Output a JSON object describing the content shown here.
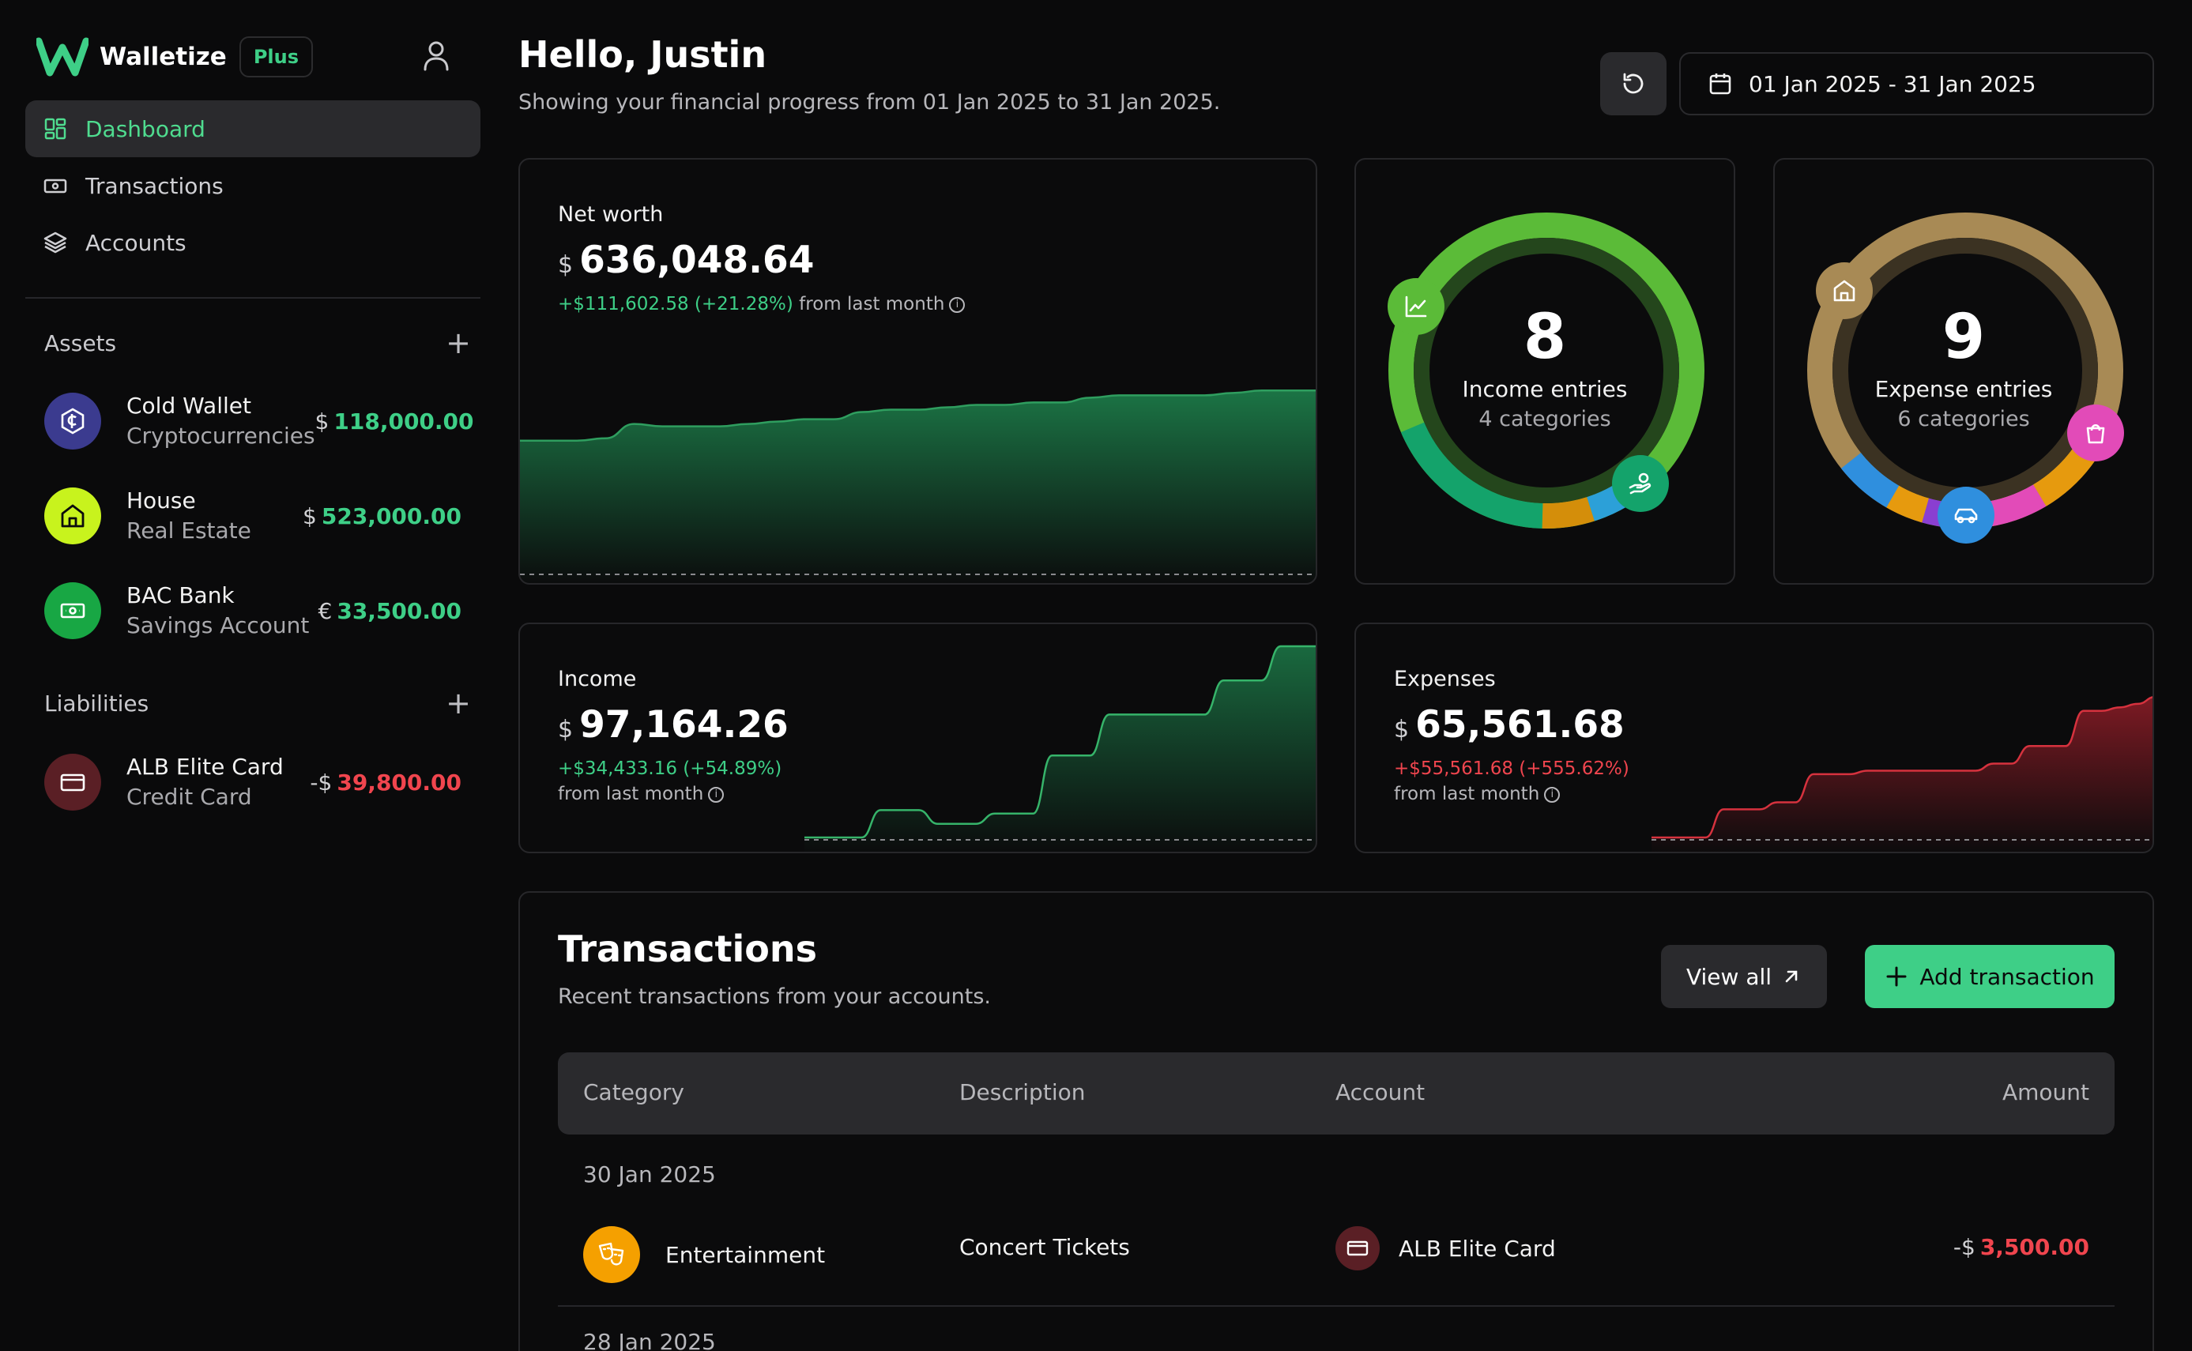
{
  "app": {
    "name": "Walletize",
    "plan_badge": "Plus"
  },
  "nav": [
    {
      "label": "Dashboard",
      "icon": "dashboard-icon",
      "active": true
    },
    {
      "label": "Transactions",
      "icon": "banknote-icon",
      "active": false
    },
    {
      "label": "Accounts",
      "icon": "layers-icon",
      "active": false
    }
  ],
  "assets": {
    "title": "Assets",
    "items": [
      {
        "name": "Cold Wallet",
        "type": "Cryptocurrencies",
        "currency": "$",
        "amount": "118,000.00",
        "icon": "crypto-coin-icon",
        "color": "#3b3b8f"
      },
      {
        "name": "House",
        "type": "Real Estate",
        "currency": "$",
        "amount": "523,000.00",
        "icon": "house-icon",
        "color": "#c8f31d"
      },
      {
        "name": "BAC Bank",
        "type": "Savings Account",
        "currency": "€",
        "amount": "33,500.00",
        "icon": "banknote-icon",
        "color": "#18a744"
      }
    ]
  },
  "liabilities": {
    "title": "Liabilities",
    "items": [
      {
        "name": "ALB Elite Card",
        "type": "Credit Card",
        "currency": "-$",
        "amount": "39,800.00",
        "icon": "credit-card-icon",
        "color": "#5a1f25"
      }
    ]
  },
  "header": {
    "greeting": "Hello, Justin",
    "subtitle": "Showing your financial progress from 01 Jan 2025 to 31 Jan 2025.",
    "date_range": "01 Jan 2025 - 31 Jan 2025"
  },
  "net_worth": {
    "title": "Net worth",
    "currency": "$",
    "value": "636,048.64",
    "delta": "+$111,602.58 (+21.28%)",
    "delta_suffix": "from last month",
    "series": [
      615,
      615,
      615,
      616,
      622,
      621,
      621,
      621,
      622,
      623,
      624,
      624,
      627,
      628,
      628,
      629,
      630,
      630,
      631,
      631,
      633,
      634,
      634,
      634,
      634,
      635,
      636,
      636,
      636
    ]
  },
  "income_donut": {
    "count": "8",
    "label": "Income entries",
    "sub": "4 categories"
  },
  "expense_donut": {
    "count": "9",
    "label": "Expense entries",
    "sub": "6 categories"
  },
  "income": {
    "title": "Income",
    "currency": "$",
    "value": "97,164.26",
    "delta": "+$34,433.16 (+54.89%)",
    "delta_suffix": "from last month",
    "series": [
      0,
      0,
      0,
      0,
      8,
      8,
      8,
      4,
      4,
      4,
      7,
      7,
      7,
      24,
      24,
      24,
      36,
      36,
      36,
      36,
      36,
      36,
      46,
      46,
      46,
      56,
      56,
      56
    ]
  },
  "expenses": {
    "title": "Expenses",
    "currency": "$",
    "value": "65,561.68",
    "delta": "+$55,561.68 (+555.62%)",
    "delta_suffix": "from last month",
    "series": [
      0,
      0,
      0,
      0,
      8,
      8,
      8,
      10,
      10,
      18,
      18,
      18,
      19,
      19,
      19,
      19,
      19,
      19,
      19,
      21,
      21,
      26,
      26,
      26,
      36,
      36,
      37,
      38,
      40
    ]
  },
  "transactions": {
    "title": "Transactions",
    "subtitle": "Recent transactions from your accounts.",
    "view_all": "View all",
    "add": "Add transaction",
    "columns": {
      "category": "Category",
      "description": "Description",
      "account": "Account",
      "amount": "Amount"
    },
    "groups": [
      {
        "date": "30 Jan 2025",
        "rows": [
          {
            "category": "Entertainment",
            "category_icon": "theater-masks-icon",
            "category_color": "#f5a000",
            "description": "Concert Tickets",
            "account": "ALB Elite Card",
            "sign": "-$",
            "amount": "3,500.00"
          }
        ]
      },
      {
        "date": "28 Jan 2025",
        "rows": []
      }
    ]
  }
}
